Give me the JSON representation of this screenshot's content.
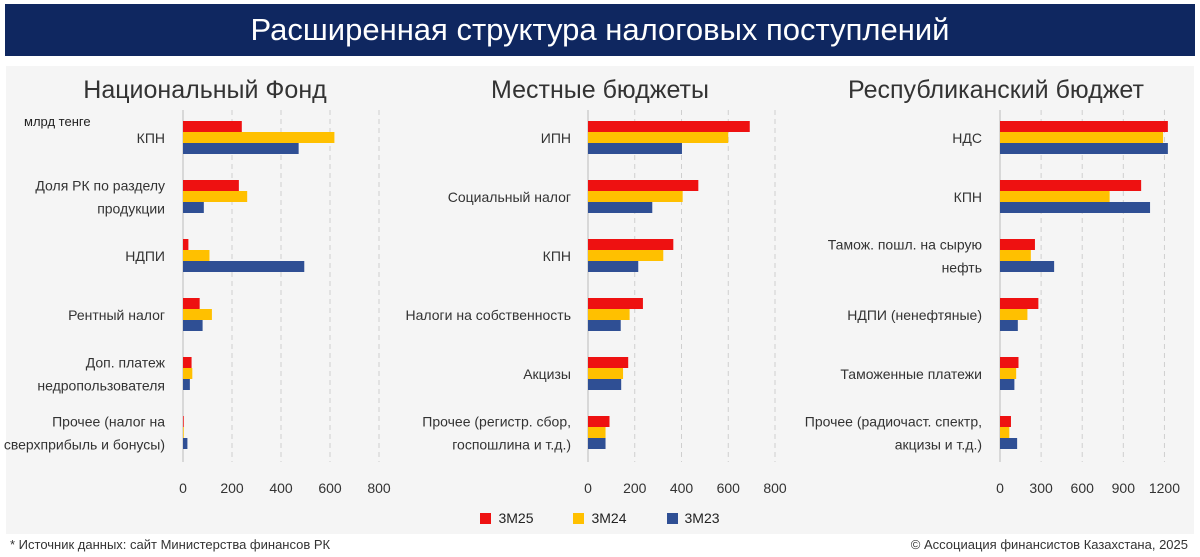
{
  "title": "Расширенная структура налоговых поступлений",
  "unit_label": "млрд тенге",
  "source": "* Источник данных: сайт Министерства финансов РК",
  "copyright": "© Ассоциация финансистов Казахстана, 2025",
  "legend": [
    {
      "name": "3М25",
      "color": "#ee1111"
    },
    {
      "name": "3М24",
      "color": "#ffc000"
    },
    {
      "name": "3М23",
      "color": "#2f4f94"
    }
  ],
  "chart_data": [
    {
      "type": "bar",
      "orientation": "horizontal",
      "title": "Национальный Фонд",
      "categories": [
        [
          "КПН"
        ],
        [
          "Доля РК по разделу",
          "продукции"
        ],
        [
          "НДПИ"
        ],
        [
          "Рентный налог"
        ],
        [
          "Доп. платеж",
          "недропользователя"
        ],
        [
          "Прочее (налог на",
          "сверхприбыль и бонусы)"
        ]
      ],
      "series": [
        {
          "name": "3М25",
          "values": [
            240,
            228,
            22,
            68,
            35,
            3
          ]
        },
        {
          "name": "3М24",
          "values": [
            618,
            262,
            108,
            118,
            38,
            3
          ]
        },
        {
          "name": "3М23",
          "values": [
            472,
            85,
            495,
            80,
            28,
            18
          ]
        }
      ],
      "xlim": [
        0,
        800
      ],
      "ticks": [
        0,
        200,
        400,
        600,
        800
      ]
    },
    {
      "type": "bar",
      "orientation": "horizontal",
      "title": "Местные бюджеты",
      "categories": [
        [
          "ИПН"
        ],
        [
          "Социальный налог"
        ],
        [
          "КПН"
        ],
        [
          "Налоги на собственность"
        ],
        [
          "Акцизы"
        ],
        [
          "Прочее (регистр. сбор,",
          "госпошлина и т.д.)"
        ]
      ],
      "series": [
        {
          "name": "3М25",
          "values": [
            692,
            472,
            365,
            235,
            172,
            92
          ]
        },
        {
          "name": "3М24",
          "values": [
            600,
            405,
            322,
            178,
            150,
            75
          ]
        },
        {
          "name": "3М23",
          "values": [
            402,
            275,
            215,
            140,
            142,
            75
          ]
        }
      ],
      "xlim": [
        0,
        800
      ],
      "ticks": [
        0,
        200,
        400,
        600,
        800
      ]
    },
    {
      "type": "bar",
      "orientation": "horizontal",
      "title": "Республиканский бюджет",
      "categories": [
        [
          "НДС"
        ],
        [
          "КПН"
        ],
        [
          "Тамож. пошл. на сырую",
          "нефть"
        ],
        [
          "НДПИ (ненефтяные)"
        ],
        [
          "Таможенные платежи"
        ],
        [
          "Прочее (радиочаст. спектр,",
          "акцизы и т.д.)"
        ]
      ],
      "series": [
        {
          "name": "3М25",
          "values": [
            1225,
            1030,
            255,
            280,
            135,
            80
          ]
        },
        {
          "name": "3М24",
          "values": [
            1190,
            800,
            225,
            200,
            118,
            68
          ]
        },
        {
          "name": "3М23",
          "values": [
            1225,
            1095,
            395,
            130,
            105,
            125
          ]
        }
      ],
      "xlim": [
        0,
        1350
      ],
      "ticks": [
        0,
        300,
        600,
        900,
        1200
      ]
    }
  ]
}
